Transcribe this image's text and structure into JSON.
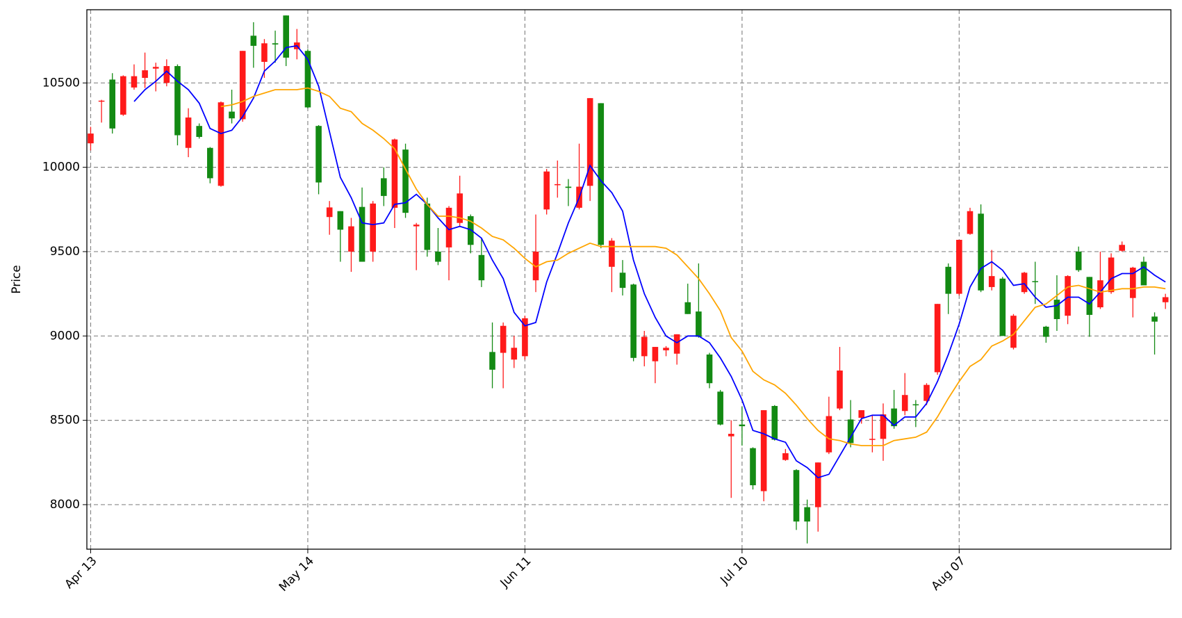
{
  "chart_data": {
    "type": "candlestick",
    "ylabel": "Price",
    "categories": [
      "Apr 13",
      null,
      null,
      null,
      null,
      null,
      null,
      null,
      null,
      null,
      null,
      null,
      null,
      null,
      null,
      null,
      null,
      null,
      null,
      null,
      "May 14",
      null,
      null,
      null,
      null,
      null,
      null,
      null,
      null,
      null,
      null,
      null,
      null,
      null,
      null,
      null,
      null,
      null,
      null,
      null,
      "Jun 11",
      null,
      null,
      null,
      null,
      null,
      null,
      null,
      null,
      null,
      null,
      null,
      null,
      null,
      null,
      null,
      null,
      null,
      null,
      null,
      "Jul 10",
      null,
      null,
      null,
      null,
      null,
      null,
      null,
      null,
      null,
      null,
      null,
      null,
      null,
      null,
      null,
      null,
      null,
      null,
      null,
      "Aug 07",
      null,
      null,
      null,
      null,
      null,
      null,
      null,
      null,
      null,
      null,
      null,
      null,
      null,
      null,
      null,
      null,
      null,
      null,
      null
    ],
    "open": [
      10142,
      10390,
      10520,
      10312,
      10473,
      10530,
      10585,
      10500,
      10600,
      10115,
      10245,
      10115,
      9890,
      10330,
      10285,
      10780,
      10625,
      10735,
      10900,
      10700,
      10690,
      10245,
      9705,
      9740,
      9500,
      9765,
      9500,
      9935,
      9760,
      10105,
      9650,
      9785,
      9500,
      9525,
      9670,
      9710,
      9480,
      8905,
      8900,
      8860,
      8880,
      9330,
      9750,
      9895,
      9885,
      9760,
      9890,
      10380,
      9410,
      9375,
      9305,
      8880,
      8850,
      8915,
      8895,
      9200,
      9145,
      8890,
      8670,
      8405,
      8475,
      8335,
      8080,
      8585,
      8265,
      8205,
      7985,
      7985,
      8310,
      8570,
      8505,
      8515,
      8385,
      8390,
      8570,
      8555,
      8595,
      8615,
      8785,
      9410,
      9250,
      9605,
      9725,
      9290,
      9340,
      8930,
      9260,
      9325,
      9055,
      9215,
      9120,
      9500,
      9350,
      9170,
      9260,
      9505,
      9225,
      9440,
      9115,
      9200
    ],
    "high": [
      10240,
      10400,
      10558,
      10545,
      10610,
      10680,
      10620,
      10640,
      10610,
      10350,
      10260,
      10120,
      10390,
      10460,
      10690,
      10860,
      10760,
      10810,
      10900,
      10820,
      10700,
      10250,
      9800,
      9740,
      9700,
      9880,
      9800,
      10000,
      10170,
      10140,
      9670,
      9820,
      9640,
      9770,
      9950,
      9720,
      9580,
      9080,
      9080,
      9000,
      9120,
      9720,
      9990,
      10040,
      9930,
      10140,
      10410,
      10380,
      9580,
      9450,
      9310,
      9030,
      8935,
      8940,
      9010,
      9310,
      9430,
      8900,
      8680,
      8500,
      8580,
      8340,
      8560,
      8590,
      8330,
      8210,
      8030,
      8250,
      8640,
      8935,
      8620,
      8560,
      8530,
      8600,
      8680,
      8780,
      8620,
      8720,
      9190,
      9430,
      9570,
      9760,
      9780,
      9510,
      9350,
      9130,
      9380,
      9440,
      9060,
      9360,
      9360,
      9530,
      9350,
      9500,
      9490,
      9560,
      9410,
      9470,
      9140,
      9250
    ],
    "low": [
      10100,
      10265,
      10200,
      10305,
      10460,
      10470,
      10450,
      10480,
      10130,
      10060,
      10170,
      9905,
      9885,
      10260,
      10270,
      10590,
      10530,
      10620,
      10600,
      10640,
      10350,
      9840,
      9600,
      9440,
      9380,
      9440,
      9440,
      9770,
      9640,
      9700,
      9390,
      9470,
      9420,
      9330,
      9650,
      9490,
      9290,
      8690,
      8690,
      8810,
      8860,
      9260,
      9720,
      9820,
      9770,
      9750,
      9800,
      9520,
      9260,
      9240,
      8850,
      8820,
      8720,
      8880,
      8830,
      9130,
      8990,
      8690,
      8470,
      8040,
      8350,
      8090,
      8020,
      8380,
      8260,
      7850,
      7770,
      7840,
      8300,
      8560,
      8340,
      8480,
      8310,
      8260,
      8450,
      8530,
      8460,
      8590,
      8770,
      9130,
      9240,
      9600,
      9260,
      9270,
      9000,
      8920,
      9250,
      9190,
      8960,
      9030,
      9070,
      9380,
      8995,
      9160,
      9250,
      9500,
      9110,
      9300,
      8890,
      9160
    ],
    "close": [
      10200,
      10395,
      10230,
      10540,
      10540,
      10575,
      10595,
      10600,
      10190,
      10295,
      10180,
      9935,
      10385,
      10290,
      10690,
      10720,
      10735,
      10728,
      10650,
      10740,
      10355,
      9910,
      9762,
      9630,
      9650,
      9440,
      9785,
      9830,
      10165,
      9730,
      9660,
      9510,
      9440,
      9760,
      9845,
      9540,
      9330,
      8800,
      9060,
      8930,
      9105,
      9500,
      9975,
      9900,
      9878,
      9885,
      10410,
      9540,
      9565,
      9285,
      8870,
      8995,
      8935,
      8930,
      9010,
      9130,
      8995,
      8720,
      8475,
      8420,
      8465,
      8115,
      8560,
      8385,
      8305,
      7900,
      7900,
      8250,
      8525,
      8795,
      8365,
      8560,
      8390,
      8535,
      8465,
      8650,
      8590,
      8710,
      9190,
      9250,
      9570,
      9740,
      9270,
      9355,
      9000,
      9120,
      9375,
      9320,
      8995,
      9100,
      9355,
      9390,
      9125,
      9330,
      9465,
      9540,
      9405,
      9300,
      9085,
      9230
    ],
    "up_color": "#ff1a1a",
    "down_color": "#138a13",
    "series": [
      {
        "color": "#0000ff",
        "values": [
          null,
          null,
          null,
          null,
          10390,
          10460,
          10510,
          10570,
          10510,
          10460,
          10380,
          10230,
          10200,
          10220,
          10300,
          10410,
          10570,
          10630,
          10710,
          10720,
          10640,
          10480,
          10210,
          9940,
          9820,
          9670,
          9660,
          9670,
          9780,
          9790,
          9840,
          9780,
          9700,
          9630,
          9650,
          9630,
          9580,
          9450,
          9340,
          9140,
          9060,
          9080,
          9320,
          9490,
          9670,
          9820,
          10010,
          9920,
          9850,
          9740,
          9450,
          9250,
          9110,
          9000,
          8960,
          9000,
          9000,
          8960,
          8870,
          8760,
          8620,
          8440,
          8420,
          8390,
          8370,
          8260,
          8220,
          8160,
          8180,
          8290,
          8400,
          8510,
          8530,
          8530,
          8470,
          8520,
          8520,
          8600,
          8730,
          8890,
          9070,
          9290,
          9400,
          9440,
          9390,
          9300,
          9310,
          9230,
          9170,
          9180,
          9230,
          9230,
          9190,
          9260,
          9340,
          9370,
          9370,
          9410,
          9360,
          9320
        ]
      },
      {
        "color": "#ffa500",
        "values": [
          null,
          null,
          null,
          null,
          null,
          null,
          null,
          null,
          null,
          null,
          null,
          null,
          10360,
          10370,
          10390,
          10420,
          10440,
          10460,
          10460,
          10460,
          10470,
          10450,
          10420,
          10350,
          10330,
          10260,
          10220,
          10170,
          10110,
          9990,
          9870,
          9780,
          9710,
          9710,
          9700,
          9680,
          9640,
          9590,
          9570,
          9520,
          9460,
          9410,
          9440,
          9450,
          9490,
          9520,
          9550,
          9530,
          9530,
          9530,
          9530,
          9530,
          9530,
          9520,
          9480,
          9410,
          9340,
          9250,
          9150,
          8990,
          8910,
          8790,
          8740,
          8710,
          8660,
          8590,
          8510,
          8440,
          8390,
          8380,
          8360,
          8350,
          8350,
          8350,
          8380,
          8390,
          8400,
          8430,
          8520,
          8630,
          8730,
          8820,
          8860,
          8940,
          8970,
          9010,
          9090,
          9170,
          9190,
          9240,
          9290,
          9300,
          9280,
          9260,
          9270,
          9280,
          9280,
          9290,
          9290,
          9280
        ]
      }
    ],
    "ylim": [
      7736,
      10934
    ],
    "yticks": [
      8000,
      8500,
      9000,
      9500,
      10000,
      10500
    ],
    "grid": true
  }
}
